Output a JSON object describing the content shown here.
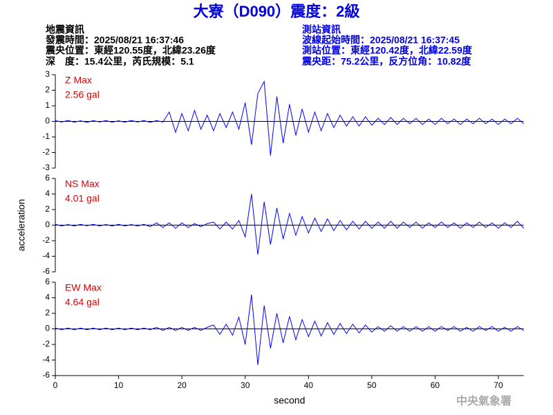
{
  "header": {
    "title": "大寮（D090）震度：2級",
    "left": [
      "地震資訊",
      "發震時間：2025/08/21 16:37:46",
      "震央位置：東經120.55度，北緯23.26度",
      "深　度：15.4公里，芮氏規模：5.1"
    ],
    "right": [
      "測站資訊",
      "波線起始時間：2025/08/21 16:37:45",
      "測站位置：東經120.42度，北緯22.59度",
      "震央距：75.2公里，反方位角：10.82度"
    ],
    "watermark": "中央氣象署"
  },
  "chart_data": [
    {
      "type": "line",
      "label": "Z Max",
      "annotation": "2.56 gal",
      "color": "#0000ff",
      "x": [
        0,
        1,
        2,
        3,
        4,
        5,
        6,
        7,
        8,
        9,
        10,
        11,
        12,
        13,
        14,
        15,
        16,
        17,
        18,
        19,
        20,
        21,
        22,
        23,
        24,
        25,
        26,
        27,
        28,
        29,
        30,
        31,
        32,
        33,
        34,
        35,
        36,
        37,
        38,
        39,
        40,
        41,
        42,
        43,
        44,
        45,
        46,
        47,
        48,
        49,
        50,
        51,
        52,
        53,
        54,
        55,
        56,
        57,
        58,
        59,
        60,
        61,
        62,
        63,
        64,
        65,
        66,
        67,
        68,
        69,
        70,
        71,
        72,
        73,
        74
      ],
      "values": [
        0.05,
        -0.04,
        0.06,
        -0.05,
        0.04,
        -0.06,
        0.05,
        -0.04,
        0.05,
        -0.05,
        0.04,
        -0.05,
        0.06,
        -0.04,
        0.05,
        -0.06,
        0.05,
        -0.04,
        0.6,
        -0.7,
        0.5,
        -0.6,
        0.7,
        -0.5,
        0.4,
        -0.6,
        0.5,
        -0.4,
        0.6,
        -0.5,
        1.2,
        -1.5,
        1.8,
        2.56,
        -2.2,
        1.6,
        -1.4,
        1.1,
        -0.9,
        0.8,
        -0.7,
        0.6,
        -0.6,
        0.5,
        -0.4,
        0.4,
        -0.3,
        0.3,
        -0.3,
        0.3,
        -0.25,
        0.2,
        -0.2,
        0.25,
        -0.2,
        0.2,
        -0.15,
        0.2,
        -0.2,
        0.15,
        -0.2,
        0.2,
        -0.15,
        0.15,
        -0.2,
        0.15,
        -0.15,
        0.2,
        -0.15,
        0.15,
        -0.2,
        0.15,
        -0.15,
        0.2,
        -0.15
      ],
      "xlim": [
        0,
        74
      ],
      "ylim": [
        -3,
        3
      ],
      "yticks": [
        3,
        2,
        1,
        0,
        -1,
        -2,
        -3
      ]
    },
    {
      "type": "line",
      "label": "NS Max",
      "annotation": "4.01 gal",
      "color": "#0000ff",
      "ylabel": "acceleration",
      "x": [
        0,
        1,
        2,
        3,
        4,
        5,
        6,
        7,
        8,
        9,
        10,
        11,
        12,
        13,
        14,
        15,
        16,
        17,
        18,
        19,
        20,
        21,
        22,
        23,
        24,
        25,
        26,
        27,
        28,
        29,
        30,
        31,
        32,
        33,
        34,
        35,
        36,
        37,
        38,
        39,
        40,
        41,
        42,
        43,
        44,
        45,
        46,
        47,
        48,
        49,
        50,
        51,
        52,
        53,
        54,
        55,
        56,
        57,
        58,
        59,
        60,
        61,
        62,
        63,
        64,
        65,
        66,
        67,
        68,
        69,
        70,
        71,
        72,
        73,
        74
      ],
      "values": [
        0.1,
        -0.1,
        0.08,
        -0.1,
        0.1,
        -0.08,
        0.1,
        -0.1,
        0.08,
        -0.1,
        0.1,
        -0.1,
        0.08,
        -0.1,
        0.1,
        -0.2,
        0.3,
        -0.3,
        0.3,
        -0.4,
        0.3,
        -0.3,
        0.2,
        -0.2,
        0.2,
        0.4,
        -0.5,
        0.4,
        -0.5,
        0.6,
        -1.5,
        4.01,
        -3.8,
        3.0,
        -2.5,
        2.2,
        -1.8,
        1.5,
        -1.3,
        1.1,
        -1.0,
        0.9,
        -0.8,
        0.8,
        -0.7,
        0.6,
        -0.6,
        0.5,
        -0.5,
        0.5,
        -0.4,
        0.4,
        -0.4,
        0.5,
        -0.4,
        0.4,
        -0.3,
        0.4,
        -0.4,
        0.3,
        -0.3,
        0.4,
        -0.3,
        0.3,
        -0.4,
        0.3,
        -0.3,
        0.4,
        -0.3,
        0.3,
        -0.4,
        0.3,
        -0.3,
        0.5,
        -0.4
      ],
      "xlim": [
        0,
        74
      ],
      "ylim": [
        -6,
        6
      ],
      "yticks": [
        6,
        4,
        2,
        0,
        -2,
        -4,
        -6
      ]
    },
    {
      "type": "line",
      "label": "EW Max",
      "annotation": "4.64 gal",
      "color": "#0000ff",
      "xlabel": "second",
      "x": [
        0,
        1,
        2,
        3,
        4,
        5,
        6,
        7,
        8,
        9,
        10,
        11,
        12,
        13,
        14,
        15,
        16,
        17,
        18,
        19,
        20,
        21,
        22,
        23,
        24,
        25,
        26,
        27,
        28,
        29,
        30,
        31,
        32,
        33,
        34,
        35,
        36,
        37,
        38,
        39,
        40,
        41,
        42,
        43,
        44,
        45,
        46,
        47,
        48,
        49,
        50,
        51,
        52,
        53,
        54,
        55,
        56,
        57,
        58,
        59,
        60,
        61,
        62,
        63,
        64,
        65,
        66,
        67,
        68,
        69,
        70,
        71,
        72,
        73,
        74
      ],
      "values": [
        0.1,
        -0.1,
        0.1,
        -0.1,
        0.1,
        -0.1,
        0.1,
        -0.1,
        0.1,
        -0.1,
        0.1,
        -0.1,
        0.1,
        -0.1,
        0.1,
        -0.1,
        0.2,
        -0.2,
        0.2,
        -0.2,
        0.2,
        -0.2,
        0.2,
        -0.2,
        0.2,
        0.5,
        -0.7,
        0.6,
        -0.8,
        1.5,
        -2.0,
        4.4,
        -4.64,
        3.0,
        -2.5,
        2.0,
        -1.8,
        1.6,
        -1.4,
        1.2,
        -1.0,
        1.0,
        -0.9,
        0.8,
        -0.7,
        0.7,
        -0.6,
        0.6,
        -0.5,
        0.5,
        -0.4,
        0.3,
        -0.3,
        0.4,
        -0.3,
        0.3,
        -0.3,
        0.3,
        -0.3,
        0.3,
        -0.3,
        0.3,
        -0.2,
        0.3,
        -0.3,
        0.2,
        -0.3,
        0.3,
        -0.2,
        0.3,
        -0.3,
        0.2,
        -0.3,
        0.3,
        -0.2
      ],
      "xlim": [
        0,
        74
      ],
      "ylim": [
        -6,
        6
      ],
      "yticks": [
        6,
        4,
        2,
        0,
        -2,
        -4,
        -6
      ],
      "xticks": [
        0,
        10,
        20,
        30,
        40,
        50,
        60,
        70
      ]
    }
  ]
}
